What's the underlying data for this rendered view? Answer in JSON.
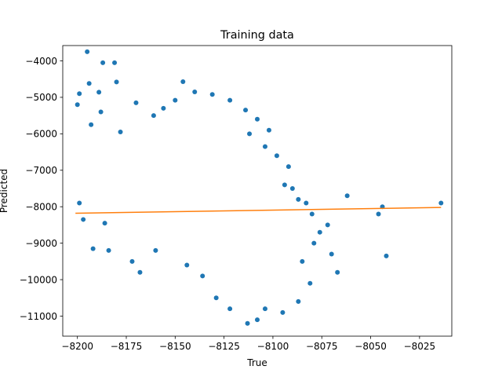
{
  "chart_data": {
    "type": "scatter",
    "title": "Training data",
    "xlabel": "True",
    "ylabel": "Predicted",
    "xlim": [
      -8207.5,
      -8008.5
    ],
    "ylim": [
      -11550,
      -3580
    ],
    "xticks": [
      -8200,
      -8175,
      -8150,
      -8125,
      -8100,
      -8075,
      -8050,
      -8025
    ],
    "xtick_labels": [
      "−8200",
      "−8175",
      "−8150",
      "−8125",
      "−8100",
      "−8075",
      "−8050",
      "−8025"
    ],
    "yticks": [
      -11000,
      -10000,
      -9000,
      -8000,
      -7000,
      -6000,
      -5000,
      -4000
    ],
    "ytick_labels": [
      "−11000",
      "−10000",
      "−9000",
      "−8000",
      "−7000",
      "−6000",
      "−5000",
      "−4000"
    ],
    "grid": false,
    "series": [
      {
        "kind": "scatter",
        "color": "#1f77b4",
        "points": [
          [
            -8195,
            -3750
          ],
          [
            -8187,
            -4050
          ],
          [
            -8181,
            -4050
          ],
          [
            -8194,
            -4620
          ],
          [
            -8199,
            -4900
          ],
          [
            -8189,
            -4860
          ],
          [
            -8180,
            -4580
          ],
          [
            -8146,
            -4570
          ],
          [
            -8200,
            -5200
          ],
          [
            -8188,
            -5400
          ],
          [
            -8161,
            -5500
          ],
          [
            -8193,
            -5750
          ],
          [
            -8178,
            -5950
          ],
          [
            -8140,
            -4850
          ],
          [
            -8131,
            -4920
          ],
          [
            -8122,
            -5080
          ],
          [
            -8114,
            -5350
          ],
          [
            -8108,
            -5600
          ],
          [
            -8102,
            -5900
          ],
          [
            -8170,
            -5150
          ],
          [
            -8156,
            -5300
          ],
          [
            -8150,
            -5080
          ],
          [
            -8112,
            -6000
          ],
          [
            -8104,
            -6350
          ],
          [
            -8098,
            -6600
          ],
          [
            -8092,
            -6900
          ],
          [
            -8090,
            -7500
          ],
          [
            -8087,
            -7800
          ],
          [
            -8094,
            -7400
          ],
          [
            -8199,
            -7900
          ],
          [
            -8197,
            -8350
          ],
          [
            -8186,
            -8450
          ],
          [
            -8192,
            -9150
          ],
          [
            -8184,
            -9200
          ],
          [
            -8172,
            -9500
          ],
          [
            -8168,
            -9800
          ],
          [
            -8160,
            -9200
          ],
          [
            -8144,
            -9600
          ],
          [
            -8136,
            -9900
          ],
          [
            -8129,
            -10500
          ],
          [
            -8122,
            -10800
          ],
          [
            -8113,
            -11200
          ],
          [
            -8108,
            -11100
          ],
          [
            -8104,
            -10800
          ],
          [
            -8095,
            -10900
          ],
          [
            -8087,
            -10600
          ],
          [
            -8085,
            -9500
          ],
          [
            -8081,
            -10100
          ],
          [
            -8079,
            -9000
          ],
          [
            -8076,
            -8700
          ],
          [
            -8070,
            -9300
          ],
          [
            -8067,
            -9800
          ],
          [
            -8062,
            -7700
          ],
          [
            -8046,
            -8200
          ],
          [
            -8044,
            -8000
          ],
          [
            -8042,
            -9350
          ],
          [
            -8014,
            -7900
          ],
          [
            -8072,
            -8500
          ],
          [
            -8080,
            -8200
          ],
          [
            -8083,
            -7900
          ]
        ]
      },
      {
        "kind": "line",
        "color": "#ff7f0e",
        "x": [
          -8201,
          -8014
        ],
        "y": [
          -8180,
          -8020
        ]
      }
    ]
  }
}
